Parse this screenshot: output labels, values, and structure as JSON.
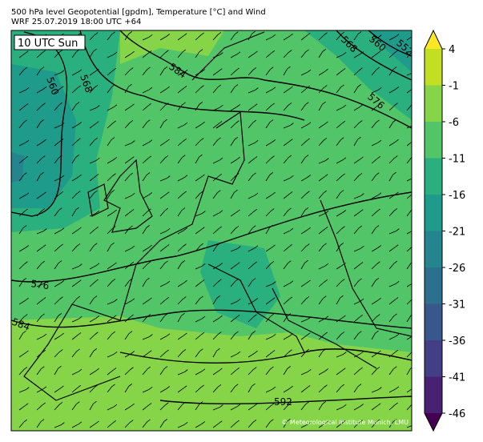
{
  "header": {
    "line1": "500 hPa level Geopotential [gpdm], Temperature [°C] and Wind",
    "line2": "WRF 25.07.2019 18:00 UTC +64"
  },
  "map": {
    "time_label": "10 UTC Sun",
    "contour_labels": [
      584,
      568,
      560,
      568,
      560,
      552,
      576,
      576,
      584,
      592
    ],
    "copyright": "© Meteorological Institute Munich, LMU"
  },
  "colorbar": {
    "ticks": [
      4,
      -1,
      -6,
      -11,
      -16,
      -21,
      -26,
      -31,
      -36,
      -41,
      -46
    ],
    "colors": [
      "#c2df23",
      "#86d549",
      "#52c569",
      "#2ab07f",
      "#1e9b8a",
      "#25858e",
      "#2d708e",
      "#38588c",
      "#433e85",
      "#482173"
    ],
    "over_color": "#fde725",
    "under_color": "#440154"
  }
}
